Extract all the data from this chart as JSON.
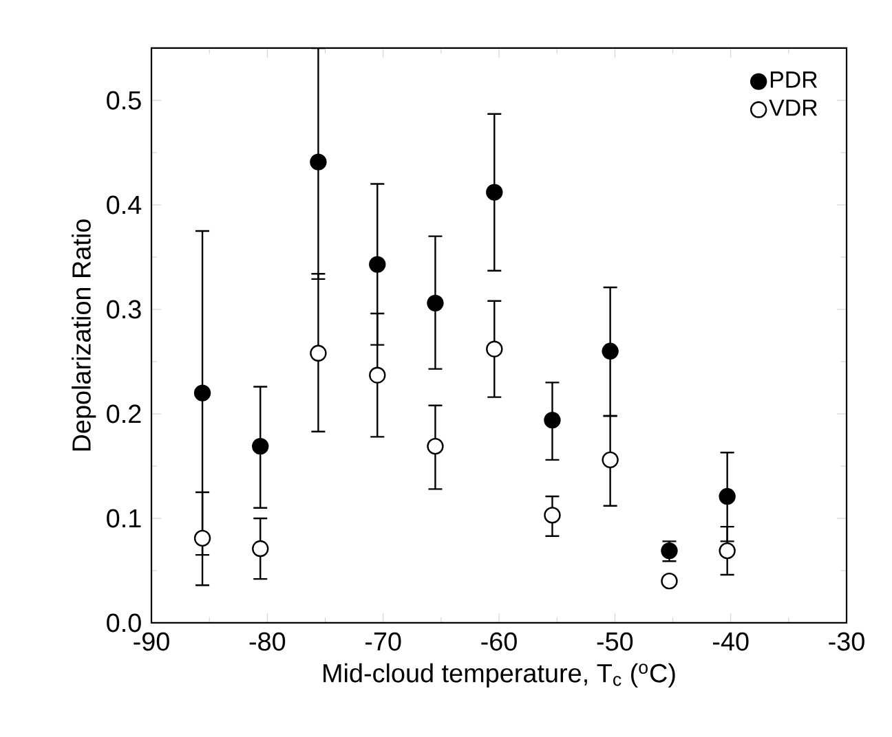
{
  "chart_data": {
    "type": "scatter",
    "xlabel": "Mid-cloud temperature, T$_{c}$ ($^{o}$C)",
    "ylabel": "Depolarization Ratio",
    "x": [
      -85.6,
      -80.6,
      -75.6,
      -70.5,
      -65.5,
      -60.4,
      -55.4,
      -50.4,
      -45.3,
      -40.3
    ],
    "series": [
      {
        "name": "PDR",
        "color": "#000000",
        "values": [
          0.22,
          0.169,
          0.441,
          0.343,
          0.306,
          0.412,
          0.194,
          0.26,
          0.069,
          0.121
        ],
        "errors": [
          [
            0.065,
            0.375
          ],
          [
            0.11,
            0.226
          ],
          [
            0.329,
            0.55
          ],
          [
            0.266,
            0.42
          ],
          [
            0.243,
            0.37
          ],
          [
            0.337,
            0.487
          ],
          [
            0.156,
            0.23
          ],
          [
            0.198,
            0.321
          ],
          [
            0.059,
            0.078
          ],
          [
            0.078,
            0.163
          ]
        ]
      },
      {
        "name": "VDR",
        "color": "#ffffff",
        "values": [
          0.081,
          0.071,
          0.258,
          0.237,
          0.169,
          0.262,
          0.103,
          0.156,
          0.04,
          0.069
        ],
        "errors": [
          [
            0.036,
            0.125
          ],
          [
            0.042,
            0.1
          ],
          [
            0.183,
            0.334
          ],
          [
            0.178,
            0.296
          ],
          [
            0.128,
            0.208
          ],
          [
            0.216,
            0.308
          ],
          [
            0.083,
            0.121
          ],
          [
            0.112,
            0.198
          ],
          null,
          [
            0.046,
            0.092
          ]
        ]
      }
    ],
    "xlim": [
      -90,
      -30
    ],
    "xticks": [
      -90,
      -80,
      -70,
      -60,
      -50,
      -40,
      -30
    ],
    "ylim": [
      0,
      0.55
    ],
    "yticks": [
      {
        "value": 0,
        "label": "0.0"
      },
      {
        "value": 0.1,
        "label": "0.1"
      },
      {
        "value": 0.2,
        "label": "0.2"
      },
      {
        "value": 0.3,
        "label": "0.3"
      },
      {
        "value": 0.4,
        "label": "0.4"
      },
      {
        "value": 0.5,
        "label": "0.5"
      }
    ],
    "marker": "circle",
    "grid": false,
    "legend": "top right"
  }
}
